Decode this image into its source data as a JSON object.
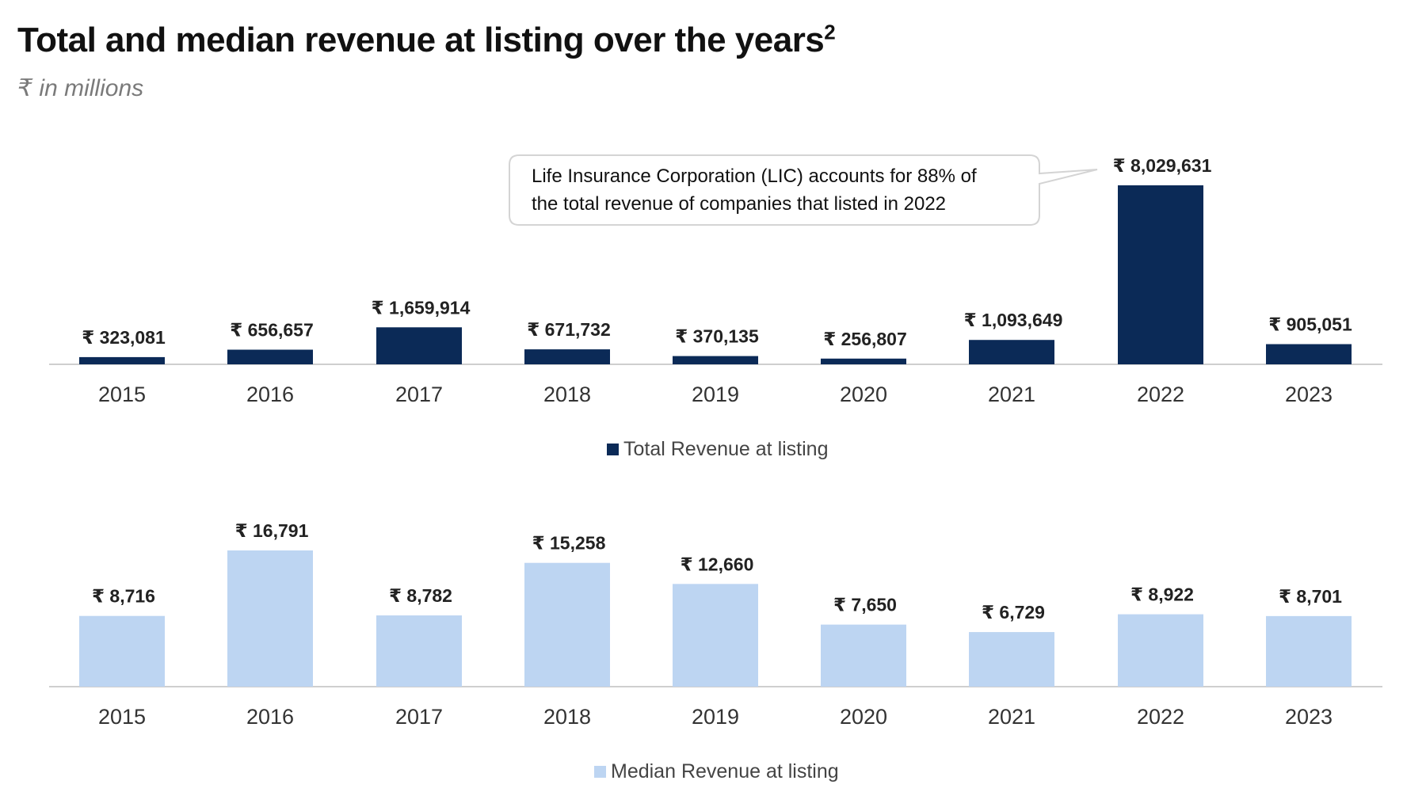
{
  "header": {
    "title": "Total and median revenue at listing over the years",
    "title_superscript": "2",
    "subtitle": "₹ in millions"
  },
  "callout": {
    "line1": "Life Insurance Corporation (LIC) accounts for 88% of",
    "line2": "the total revenue of companies that listed in 2022"
  },
  "colors": {
    "total": "#0b2a57",
    "median": "#bdd5f2",
    "axis": "#cfcfcf",
    "callout_border": "#d4d4d4"
  },
  "chart_data": [
    {
      "type": "bar",
      "categories": [
        "2015",
        "2016",
        "2017",
        "2018",
        "2019",
        "2020",
        "2021",
        "2022",
        "2023"
      ],
      "values": [
        323081,
        656657,
        1659914,
        671732,
        370135,
        256807,
        1093649,
        8029631,
        905051
      ],
      "labels": [
        "₹ 323,081",
        "₹ 656,657",
        "₹ 1,659,914",
        "₹ 671,732",
        "₹ 370,135",
        "₹ 256,807",
        "₹ 1,093,649",
        "₹ 8,029,631",
        "₹ 905,051"
      ],
      "legend": "Total Revenue at listing",
      "ylim": [
        0,
        8029631
      ],
      "grid": false,
      "legend_position": "bottom"
    },
    {
      "type": "bar",
      "categories": [
        "2015",
        "2016",
        "2017",
        "2018",
        "2019",
        "2020",
        "2021",
        "2022",
        "2023"
      ],
      "values": [
        8716,
        16791,
        8782,
        15258,
        12660,
        7650,
        6729,
        8922,
        8701
      ],
      "labels": [
        "₹ 8,716",
        "₹ 16,791",
        "₹ 8,782",
        "₹ 15,258",
        "₹ 12,660",
        "₹ 7,650",
        "₹ 6,729",
        "₹ 8,922",
        "₹ 8,701"
      ],
      "legend": "Median Revenue at listing",
      "ylim": [
        0,
        16791
      ],
      "grid": false,
      "legend_position": "bottom"
    }
  ]
}
